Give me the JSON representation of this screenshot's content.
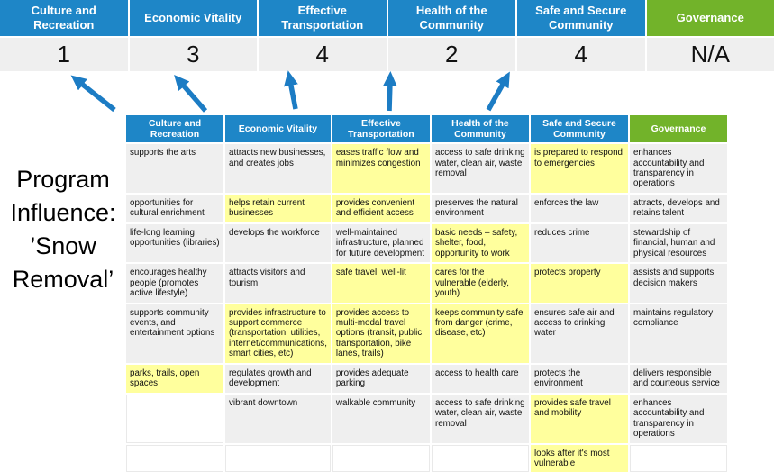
{
  "colors": {
    "header_blue": "#1e86c7",
    "header_green": "#72b32a",
    "cell_gray": "#efefef",
    "cell_highlight": "#ffff9d",
    "arrow_blue": "#1c7cc4"
  },
  "program_title": {
    "lines": [
      "Program",
      "Influence:",
      "’Snow",
      "Removal’"
    ]
  },
  "scoreboard": {
    "columns": [
      {
        "label": "Culture and Recreation",
        "score": "1",
        "type": "blue"
      },
      {
        "label": "Economic Vitality",
        "score": "3",
        "type": "blue"
      },
      {
        "label": "Effective Transportation",
        "score": "4",
        "type": "blue"
      },
      {
        "label": "Health of the Community",
        "score": "2",
        "type": "blue"
      },
      {
        "label": "Safe and Secure Community",
        "score": "4",
        "type": "blue"
      },
      {
        "label": "Governance",
        "score": "N/A",
        "type": "green"
      }
    ]
  },
  "matrix": {
    "headers": [
      {
        "label": "Culture and Recreation",
        "type": "blue"
      },
      {
        "label": "Economic Vitality",
        "type": "blue"
      },
      {
        "label": "Effective Transportation",
        "type": "blue"
      },
      {
        "label": "Health of the Community",
        "type": "blue"
      },
      {
        "label": "Safe and Secure Community",
        "type": "blue"
      },
      {
        "label": "Governance",
        "type": "green"
      }
    ],
    "rows": [
      [
        {
          "text": "supports the arts",
          "highlight": false
        },
        {
          "text": "attracts new businesses, and creates jobs",
          "highlight": false
        },
        {
          "text": "eases traffic flow and minimizes congestion",
          "highlight": true
        },
        {
          "text": "access to safe drinking water, clean air, waste removal",
          "highlight": false
        },
        {
          "text": "is prepared to respond to emergencies",
          "highlight": true
        },
        {
          "text": "enhances accountability and transparency in operations",
          "highlight": false
        }
      ],
      [
        {
          "text": "opportunities for cultural enrichment",
          "highlight": false
        },
        {
          "text": "helps retain current businesses",
          "highlight": true
        },
        {
          "text": "provides convenient and efficient access",
          "highlight": true
        },
        {
          "text": "preserves the natural environment",
          "highlight": false
        },
        {
          "text": "enforces the law",
          "highlight": false
        },
        {
          "text": "attracts, develops and retains talent",
          "highlight": false
        }
      ],
      [
        {
          "text": "life-long learning opportunities (libraries)",
          "highlight": false
        },
        {
          "text": "develops the workforce",
          "highlight": false
        },
        {
          "text": "well-maintained infrastructure, planned for future development",
          "highlight": false
        },
        {
          "text": "basic needs – safety, shelter, food, opportunity to work",
          "highlight": true
        },
        {
          "text": "reduces crime",
          "highlight": false
        },
        {
          "text": "stewardship of financial, human and physical resources",
          "highlight": false
        }
      ],
      [
        {
          "text": "encourages healthy people (promotes active lifestyle)",
          "highlight": false
        },
        {
          "text": "attracts visitors and tourism",
          "highlight": false
        },
        {
          "text": "safe travel, well-lit",
          "highlight": true
        },
        {
          "text": "cares for the vulnerable (elderly, youth)",
          "highlight": true
        },
        {
          "text": "protects property",
          "highlight": true
        },
        {
          "text": "assists and supports decision makers",
          "highlight": false
        }
      ],
      [
        {
          "text": "supports community events, and entertainment options",
          "highlight": false
        },
        {
          "text": "provides infrastructure to support commerce (transportation, utilities, internet/communications, smart cities, etc)",
          "highlight": true
        },
        {
          "text": "provides access to multi-modal travel options (transit, public transportation, bike lanes, trails)",
          "highlight": true
        },
        {
          "text": "keeps community safe from danger (crime, disease, etc)",
          "highlight": true
        },
        {
          "text": "ensures safe air and access to drinking water",
          "highlight": false
        },
        {
          "text": "maintains regulatory compliance",
          "highlight": false
        }
      ],
      [
        {
          "text": "parks, trails, open spaces",
          "highlight": true
        },
        {
          "text": "regulates growth and development",
          "highlight": false
        },
        {
          "text": "provides adequate parking",
          "highlight": false
        },
        {
          "text": "access to health care",
          "highlight": false
        },
        {
          "text": "protects the environment",
          "highlight": false
        },
        {
          "text": "delivers responsible and courteous service",
          "highlight": false
        }
      ],
      [
        {
          "text": "",
          "highlight": false
        },
        {
          "text": "vibrant downtown",
          "highlight": false
        },
        {
          "text": "walkable community",
          "highlight": false
        },
        {
          "text": "access to safe drinking water, clean air, waste removal",
          "highlight": false
        },
        {
          "text": "provides safe travel and mobility",
          "highlight": true
        },
        {
          "text": "enhances accountability and transparency in operations",
          "highlight": false
        }
      ],
      [
        {
          "text": "",
          "highlight": false
        },
        {
          "text": "",
          "highlight": false
        },
        {
          "text": "",
          "highlight": false
        },
        {
          "text": "",
          "highlight": false
        },
        {
          "text": "looks after it's most vulnerable",
          "highlight": true
        },
        {
          "text": "",
          "highlight": false
        }
      ]
    ]
  }
}
